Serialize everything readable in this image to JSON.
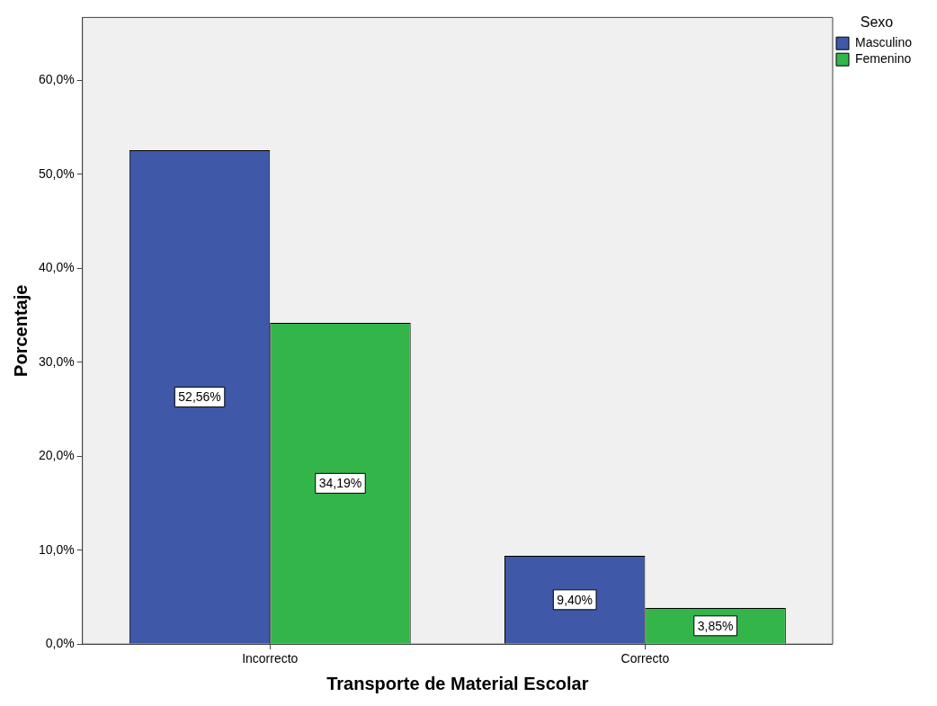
{
  "chart_data": {
    "type": "bar",
    "xlabel": "Transporte de Material Escolar",
    "ylabel": "Porcentaje",
    "legend_title": "Sexo",
    "legend": "top right",
    "grid": false,
    "categories": [
      "Incorrecto",
      "Correcto"
    ],
    "series": [
      {
        "name": "Masculino",
        "color": "#3f58a8",
        "values": [
          52.56,
          9.4
        ],
        "value_labels": [
          "52,56%",
          "9,40%"
        ]
      },
      {
        "name": "Femenino",
        "color": "#33b54a",
        "values": [
          34.19,
          3.85
        ],
        "value_labels": [
          "34,19%",
          "3,85%"
        ]
      }
    ],
    "ylim": [
      0,
      66.7
    ],
    "yticks": [
      {
        "value": 0,
        "label": "0,0%"
      },
      {
        "value": 10,
        "label": "10,0%"
      },
      {
        "value": 20,
        "label": "20,0%"
      },
      {
        "value": 30,
        "label": "30,0%"
      },
      {
        "value": 40,
        "label": "40,0%"
      },
      {
        "value": 50,
        "label": "50,0%"
      },
      {
        "value": 60,
        "label": "60,0%"
      }
    ]
  }
}
